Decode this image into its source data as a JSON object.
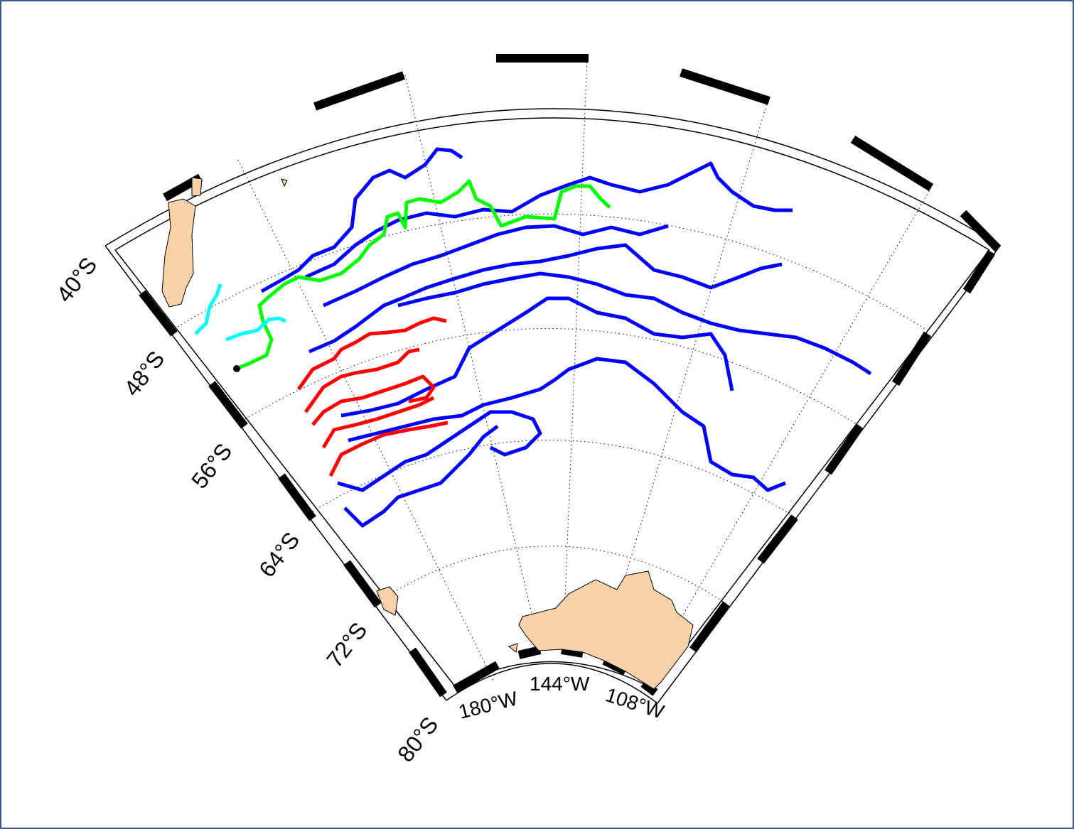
{
  "map": {
    "projection": "polar sector",
    "lat_labels": [
      {
        "deg": "40",
        "text": "40°S"
      },
      {
        "deg": "48",
        "text": "48°S"
      },
      {
        "deg": "56",
        "text": "56°S"
      },
      {
        "deg": "64",
        "text": "64°S"
      },
      {
        "deg": "72",
        "text": "72°S"
      },
      {
        "deg": "80",
        "text": "80°S"
      }
    ],
    "lon_labels": [
      {
        "deg": "180",
        "text": "180°W"
      },
      {
        "deg": "144",
        "text": "144°W"
      },
      {
        "deg": "108",
        "text": "108°W"
      }
    ],
    "colors": {
      "land": "#fad2aa",
      "track_blue": "#0000ff",
      "track_green": "#00ff00",
      "track_red": "#ff0000",
      "track_cyan": "#00ffff",
      "frame_border": "#3d5a99"
    }
  }
}
